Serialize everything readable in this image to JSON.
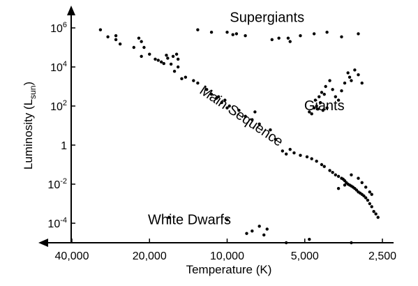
{
  "chart_data": {
    "type": "scatter",
    "title": "",
    "xlabel": "Temperature (K)",
    "ylabel": "Luminosity (L",
    "ylabel_subscript": "sun",
    "ylabel_suffix": ")",
    "x_scale": "log",
    "x_reversed": true,
    "y_scale": "log",
    "xlim": [
      40000,
      2500
    ],
    "ylim": [
      1e-05,
      10000000
    ],
    "x_ticks": [
      {
        "value": 40000,
        "label": "40,000"
      },
      {
        "value": 20000,
        "label": "20,000"
      },
      {
        "value": 10000,
        "label": "10,000"
      },
      {
        "value": 5000,
        "label": "5,000"
      },
      {
        "value": 2500,
        "label": "2,500"
      }
    ],
    "y_ticks": [
      {
        "value": 0.0001,
        "base": "10",
        "exp": "-4"
      },
      {
        "value": 0.01,
        "base": "10",
        "exp": "-2"
      },
      {
        "value": 1,
        "base": "1",
        "exp": ""
      },
      {
        "value": 100,
        "base": "10",
        "exp": "2"
      },
      {
        "value": 10000,
        "base": "10",
        "exp": "4"
      },
      {
        "value": 1000000,
        "base": "10",
        "exp": "6"
      }
    ],
    "grid": false,
    "annotations": [
      {
        "text": "Supergiants",
        "x": 7000,
        "y": 2000000,
        "rotate": 0
      },
      {
        "text": "Giants",
        "x": 4200,
        "y": 60,
        "rotate": 0
      },
      {
        "text": "Main Sequence",
        "x": 9000,
        "y": 20,
        "rotate": 34
      },
      {
        "text": "White Dwarfs",
        "x": 14000,
        "y": 9e-05,
        "rotate": 0
      }
    ],
    "series": [
      {
        "points": [
          [
            31000,
            800000
          ],
          [
            29000,
            350000
          ],
          [
            27000,
            400000
          ],
          [
            27000,
            250000
          ],
          [
            22000,
            300000
          ],
          [
            21500,
            200000
          ],
          [
            26000,
            150000
          ],
          [
            23000,
            100000
          ],
          [
            21000,
            100000
          ],
          [
            21500,
            35000
          ],
          [
            20000,
            45000
          ],
          [
            19000,
            25000
          ],
          [
            18500,
            22000
          ],
          [
            18000,
            18000
          ],
          [
            16500,
            14000
          ],
          [
            15500,
            10000
          ],
          [
            15700,
            45000
          ],
          [
            16200,
            35000
          ],
          [
            17000,
            28000
          ],
          [
            17200,
            40000
          ],
          [
            17600,
            15000
          ],
          [
            16000,
            6000
          ],
          [
            15000,
            2500
          ],
          [
            15500,
            25000
          ],
          [
            14500,
            3000
          ],
          [
            13500,
            2000
          ],
          [
            13000,
            1500
          ],
          [
            12000,
            700
          ],
          [
            11500,
            400
          ],
          [
            11000,
            250
          ],
          [
            10500,
            150
          ],
          [
            10000,
            80
          ],
          [
            10200,
            200
          ],
          [
            10800,
            300
          ],
          [
            9800,
            100
          ],
          [
            9000,
            60
          ],
          [
            8500,
            30
          ],
          [
            8000,
            20
          ],
          [
            7500,
            12
          ],
          [
            7800,
            50
          ],
          [
            6800,
            6
          ],
          [
            6500,
            2
          ],
          [
            6100,
            0.5
          ],
          [
            5900,
            0.35
          ],
          [
            5700,
            0.6
          ],
          [
            5500,
            0.4
          ],
          [
            5200,
            0.3
          ],
          [
            4900,
            0.25
          ],
          [
            4700,
            0.2
          ],
          [
            4500,
            0.15
          ],
          [
            4300,
            0.1
          ],
          [
            4200,
            0.08
          ],
          [
            4000,
            0.05
          ],
          [
            3900,
            0.04
          ],
          [
            3800,
            0.03
          ],
          [
            3700,
            0.025
          ],
          [
            3600,
            0.02
          ],
          [
            3550,
            0.018
          ],
          [
            3500,
            0.015
          ],
          [
            3450,
            0.012
          ],
          [
            3400,
            0.01
          ],
          [
            3350,
            0.009
          ],
          [
            3300,
            0.008
          ],
          [
            3250,
            0.007
          ],
          [
            3200,
            0.006
          ],
          [
            3150,
            0.005
          ],
          [
            3100,
            0.004
          ],
          [
            3050,
            0.0035
          ],
          [
            3000,
            0.003
          ],
          [
            2950,
            0.0025
          ],
          [
            2900,
            0.002
          ],
          [
            2850,
            0.0015
          ],
          [
            2800,
            0.001
          ],
          [
            2750,
            0.0007
          ],
          [
            2700,
            0.0004
          ],
          [
            2650,
            0.0003
          ],
          [
            3000,
            0.012
          ],
          [
            3100,
            0.02
          ],
          [
            3300,
            0.03
          ],
          [
            3500,
            0.009
          ],
          [
            3700,
            0.006
          ],
          [
            2900,
            0.007
          ],
          [
            2800,
            0.004
          ],
          [
            2750,
            0.003
          ],
          [
            2600,
            0.0002
          ],
          [
            4800,
            50
          ],
          [
            4700,
            40
          ],
          [
            4600,
            80
          ],
          [
            4500,
            100
          ],
          [
            4550,
            200
          ],
          [
            4400,
            300
          ],
          [
            4300,
            500
          ],
          [
            4200,
            400
          ],
          [
            4350,
            150
          ],
          [
            4150,
            1000
          ],
          [
            4000,
            2000
          ],
          [
            3900,
            700
          ],
          [
            4100,
            80
          ],
          [
            3800,
            300
          ],
          [
            3600,
            600
          ],
          [
            3500,
            1500
          ],
          [
            3350,
            3000
          ],
          [
            3300,
            2000
          ],
          [
            3400,
            5000
          ],
          [
            3200,
            7000
          ],
          [
            3100,
            4000
          ],
          [
            3000,
            1500
          ],
          [
            4250,
            60
          ],
          [
            4450,
            70
          ],
          [
            3700,
            200
          ],
          [
            5800,
            300000
          ],
          [
            5200,
            400000
          ],
          [
            4600,
            500000
          ],
          [
            4100,
            600000
          ],
          [
            3600,
            350000
          ],
          [
            3100,
            500000
          ],
          [
            6700,
            250000
          ],
          [
            6300,
            300000
          ],
          [
            5700,
            200000
          ],
          [
            8500,
            400000
          ],
          [
            10000,
            600000
          ],
          [
            9500,
            450000
          ],
          [
            9200,
            500000
          ],
          [
            11500,
            600000
          ],
          [
            13000,
            800000
          ],
          [
            16800,
            0.0002
          ],
          [
            10000,
            0.00015
          ],
          [
            8400,
            3e-05
          ],
          [
            7000,
            5e-05
          ],
          [
            7500,
            7e-05
          ],
          [
            7200,
            2.5e-05
          ],
          [
            5900,
            1e-05
          ],
          [
            4800,
            1.5e-05
          ],
          [
            3300,
            1e-05
          ],
          [
            8000,
            4e-05
          ]
        ]
      }
    ]
  }
}
